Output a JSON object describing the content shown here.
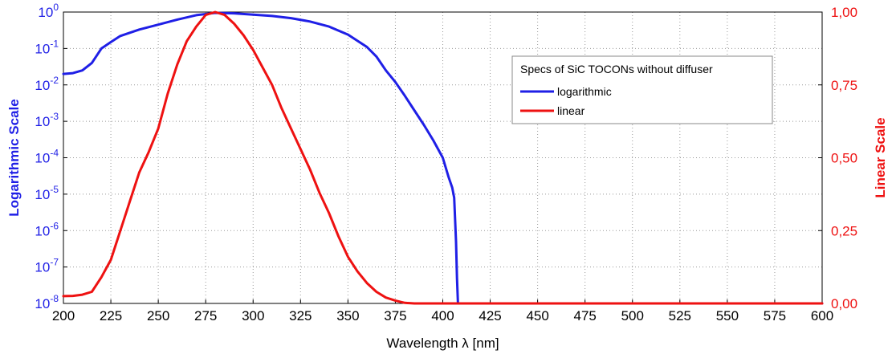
{
  "chart_data": {
    "type": "line",
    "xlabel": "Wavelength λ [nm]",
    "y_left_label": "Logarithmic Scale",
    "y_right_label": "Linear Scale",
    "x_range": [
      200,
      600
    ],
    "x_ticks": [
      "200",
      "225",
      "250",
      "275",
      "300",
      "325",
      "350",
      "375",
      "400",
      "425",
      "450",
      "475",
      "500",
      "525",
      "550",
      "575",
      "600"
    ],
    "y_left_scale": "log",
    "y_left_range": [
      1e-08,
      1
    ],
    "y_left_ticks": [
      {
        "base": "10",
        "exp": "0"
      },
      {
        "base": "10",
        "exp": "-1"
      },
      {
        "base": "10",
        "exp": "-2"
      },
      {
        "base": "10",
        "exp": "-3"
      },
      {
        "base": "10",
        "exp": "-4"
      },
      {
        "base": "10",
        "exp": "-5"
      },
      {
        "base": "10",
        "exp": "-6"
      },
      {
        "base": "10",
        "exp": "-7"
      },
      {
        "base": "10",
        "exp": "-8"
      }
    ],
    "y_right_range": [
      0,
      1.0
    ],
    "y_right_ticks": [
      "1,00",
      "0,75",
      "0,50",
      "0,25",
      "0,00"
    ],
    "grid": true,
    "legend": {
      "title": "Specs of SiC TOCONs without diffuser",
      "placement": "top-right"
    },
    "series": [
      {
        "name": "logarithmic",
        "axis": "left-log",
        "color": "#1f1fe6",
        "x": [
          200,
          205,
          210,
          215,
          220,
          225,
          230,
          235,
          240,
          250,
          260,
          270,
          280,
          290,
          300,
          310,
          320,
          330,
          340,
          350,
          360,
          365,
          370,
          375,
          380,
          385,
          390,
          395,
          400,
          403,
          405,
          406,
          407,
          407.5,
          408,
          600
        ],
        "y": [
          0.02,
          0.021,
          0.025,
          0.04,
          0.1,
          0.15,
          0.22,
          0.27,
          0.33,
          0.45,
          0.62,
          0.82,
          0.95,
          0.92,
          0.85,
          0.78,
          0.68,
          0.55,
          0.4,
          0.24,
          0.11,
          0.06,
          0.025,
          0.012,
          0.005,
          0.002,
          0.0008,
          0.0003,
          0.0001,
          3e-05,
          1.5e-05,
          8e-06,
          5e-07,
          5e-08,
          1e-08,
          1e-08
        ]
      },
      {
        "name": "linear",
        "axis": "right-linear",
        "color": "#ee1111",
        "x": [
          200,
          205,
          210,
          215,
          220,
          225,
          230,
          235,
          240,
          245,
          250,
          255,
          260,
          265,
          270,
          275,
          280,
          285,
          290,
          295,
          300,
          305,
          310,
          315,
          320,
          325,
          330,
          335,
          340,
          345,
          350,
          355,
          360,
          365,
          370,
          375,
          378,
          380,
          385,
          600
        ],
        "y": [
          0.025,
          0.026,
          0.03,
          0.04,
          0.09,
          0.15,
          0.25,
          0.35,
          0.45,
          0.52,
          0.6,
          0.72,
          0.82,
          0.9,
          0.95,
          0.99,
          1.0,
          0.99,
          0.96,
          0.92,
          0.87,
          0.81,
          0.75,
          0.67,
          0.6,
          0.53,
          0.46,
          0.38,
          0.31,
          0.23,
          0.16,
          0.11,
          0.07,
          0.04,
          0.02,
          0.01,
          0.005,
          0.002,
          0.0,
          0.0
        ]
      }
    ]
  }
}
